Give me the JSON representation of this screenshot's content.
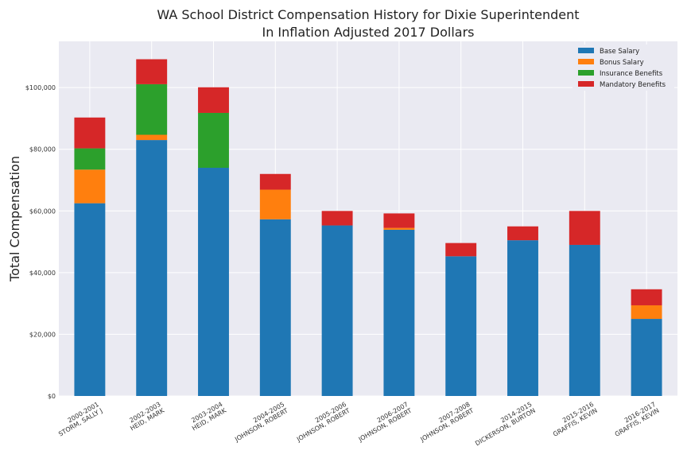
{
  "chart_data": {
    "type": "bar",
    "stacked": true,
    "title": "WA School District Compensation History for Dixie Superintendent",
    "subtitle": "In Inflation Adjusted 2017 Dollars",
    "xlabel": "",
    "ylabel": "Total Compensation",
    "ylim": [
      0,
      115000
    ],
    "yticks": [
      0,
      20000,
      40000,
      60000,
      80000,
      100000
    ],
    "ytick_labels": [
      "$0",
      "$20,000",
      "$40,000",
      "$60,000",
      "$80,000",
      "$100,000"
    ],
    "grid": true,
    "legend_position": "top-right",
    "categories": [
      [
        "2000-2001",
        "STORM, SALLY J"
      ],
      [
        "2002-2003",
        "HEID, MARK"
      ],
      [
        "2003-2004",
        "HEID, MARK"
      ],
      [
        "2004-2005",
        "JOHNSON, ROBERT"
      ],
      [
        "2005-2006",
        "JOHNSON, ROBERT"
      ],
      [
        "2006-2007",
        "JOHNSON, ROBERT"
      ],
      [
        "2007-2008",
        "JOHNSON, ROBERT"
      ],
      [
        "2014-2015",
        "DICKERSON, BURTON"
      ],
      [
        "2015-2016",
        "GRAFFIS, KEVIN"
      ],
      [
        "2016-2017",
        "GRAFFIS, KEVIN"
      ]
    ],
    "series": [
      {
        "name": "Base Salary",
        "color": "#1f77b4",
        "values": [
          62500,
          83000,
          74000,
          57300,
          55300,
          53900,
          45300,
          50500,
          49000,
          25000
        ]
      },
      {
        "name": "Bonus Salary",
        "color": "#ff7f0e",
        "values": [
          10900,
          1700,
          0,
          9600,
          0,
          600,
          0,
          0,
          0,
          4400
        ]
      },
      {
        "name": "Insurance Benefits",
        "color": "#2ca02c",
        "values": [
          6900,
          16400,
          17800,
          0,
          0,
          0,
          0,
          0,
          0,
          0
        ]
      },
      {
        "name": "Mandatory Benefits",
        "color": "#d62728",
        "values": [
          10000,
          8100,
          8300,
          5100,
          4700,
          4700,
          4300,
          4500,
          11000,
          5200
        ]
      }
    ]
  }
}
